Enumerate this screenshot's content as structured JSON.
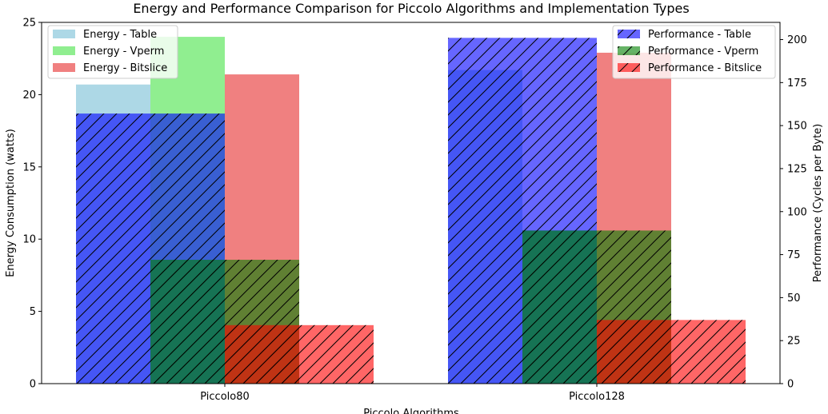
{
  "chart_data": {
    "type": "bar",
    "title": "Energy and Performance Comparison for Piccolo Algorithms and Implementation Types",
    "xlabel": "Piccolo Algorithms",
    "ylabel_left": "Energy Consumption (watts)",
    "ylabel_right": "Performance (Cycles per Byte)",
    "categories": [
      "Piccolo80",
      "Piccolo128"
    ],
    "ylim_left": [
      0,
      25
    ],
    "ylim_right": [
      0,
      210
    ],
    "yticks_left": [
      "0",
      "5",
      "10",
      "15",
      "20",
      "25"
    ],
    "yticks_right": [
      "0",
      "25",
      "50",
      "75",
      "100",
      "125",
      "150",
      "175",
      "200"
    ],
    "energy_series": [
      {
        "name": "Energy - Table",
        "color": "#add8e6",
        "values": [
          20.7,
          21.7
        ]
      },
      {
        "name": "Energy - Vperm",
        "color": "#90ee90",
        "values": [
          24.0,
          10.6
        ]
      },
      {
        "name": "Energy - Bitslice",
        "color": "#f08080",
        "values": [
          21.4,
          22.9
        ]
      }
    ],
    "performance_series": [
      {
        "name": "Performance - Table",
        "color": "#0000ff",
        "values": [
          157,
          201
        ]
      },
      {
        "name": "Performance - Vperm",
        "color": "#008000",
        "values": [
          72,
          89
        ]
      },
      {
        "name": "Performance - Bitslice",
        "color": "#ff0000",
        "values": [
          34,
          37
        ]
      }
    ],
    "legend_left_position": "upper left",
    "legend_right_position": "upper right",
    "grid": false
  }
}
